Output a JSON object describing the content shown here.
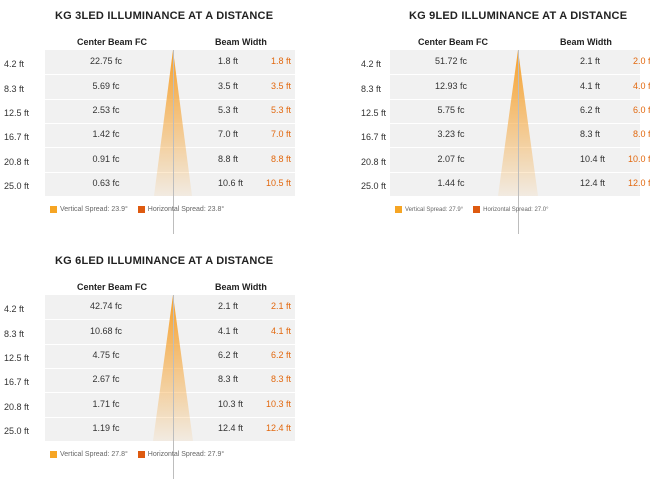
{
  "colors": {
    "vertical": "#f6a524",
    "horizontal": "#de5a10",
    "beam_width_h": "#e2680e",
    "cone": "#f6a02b"
  },
  "chart_data": [
    {
      "type": "table",
      "title": "KG 3LED ILLUMINANCE AT A DISTANCE",
      "col_center": "Center Beam FC",
      "col_width": "Beam Width",
      "distances": [
        "4.2 ft",
        "8.3 ft",
        "12.5 ft",
        "16.7 ft",
        "20.8 ft",
        "25.0 ft"
      ],
      "fc": [
        "22.75 fc",
        "5.69 fc",
        "2.53 fc",
        "1.42 fc",
        "0.91 fc",
        "0.63 fc"
      ],
      "width_v": [
        "1.8 ft",
        "3.5 ft",
        "5.3 ft",
        "7.0 ft",
        "8.8 ft",
        "10.6 ft"
      ],
      "width_h": [
        "1.8 ft",
        "3.5 ft",
        "5.3 ft",
        "7.0 ft",
        "8.8 ft",
        "10.5 ft"
      ],
      "legend_v": "Vertical Spread: 23.9°",
      "legend_h": "Horizontal Spread: 23.8°"
    },
    {
      "type": "table",
      "title": "KG 9LED ILLUMINANCE AT A DISTANCE",
      "col_center": "Center Beam FC",
      "col_width": "Beam Width",
      "distances": [
        "4.2 ft",
        "8.3 ft",
        "12.5 ft",
        "16.7 ft",
        "20.8 ft",
        "25.0 ft"
      ],
      "fc": [
        "51.72 fc",
        "12.93 fc",
        "5.75 fc",
        "3.23 fc",
        "2.07 fc",
        "1.44 fc"
      ],
      "width_v": [
        "2.1 ft",
        "4.1 ft",
        "6.2 ft",
        "8.3 ft",
        "10.4 ft",
        "12.4 ft"
      ],
      "width_h": [
        "2.0 ft",
        "4.0 ft",
        "6.0 ft",
        "8.0 ft",
        "10.0 ft",
        "12.0 ft"
      ],
      "legend_v": "Vertical Spread: 27.9°",
      "legend_h": "Horizontal Spread: 27.0°"
    },
    {
      "type": "table",
      "title": "KG 6LED ILLUMINANCE AT A DISTANCE",
      "col_center": "Center Beam FC",
      "col_width": "Beam Width",
      "distances": [
        "4.2 ft",
        "8.3 ft",
        "12.5 ft",
        "16.7 ft",
        "20.8 ft",
        "25.0 ft"
      ],
      "fc": [
        "42.74 fc",
        "10.68 fc",
        "4.75 fc",
        "2.67 fc",
        "1.71 fc",
        "1.19 fc"
      ],
      "width_v": [
        "2.1 ft",
        "4.1 ft",
        "6.2 ft",
        "8.3 ft",
        "10.3 ft",
        "12.4 ft"
      ],
      "width_h": [
        "2.1 ft",
        "4.1 ft",
        "6.2 ft",
        "8.3 ft",
        "10.3 ft",
        "12.4 ft"
      ],
      "legend_v": "Vertical Spread: 27.8°",
      "legend_h": "Horizontal Spread: 27.9°"
    }
  ]
}
